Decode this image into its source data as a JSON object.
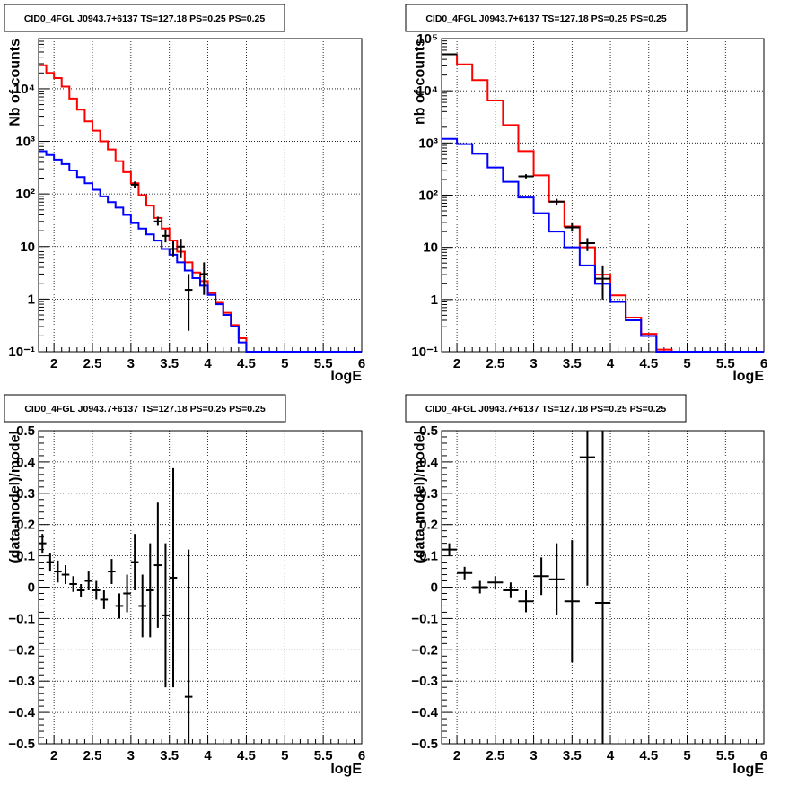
{
  "chart_data": [
    {
      "type": "step",
      "title": "CID0_4FGL J0943.7+6137 TS=127.18 PS=0.25 PS=0.25",
      "xlabel": "logE",
      "ylabel": "Nb of counts",
      "xlim": [
        1.8,
        6.0
      ],
      "ylim": [
        0.1,
        90000
      ],
      "yscale": "log",
      "grid": true,
      "xticks": [
        2,
        2.5,
        3,
        3.5,
        4,
        4.5,
        5,
        5.5,
        6
      ],
      "xtick_labels": [
        "2",
        "2.5",
        "3",
        "3.5",
        "4",
        "4.5",
        "5",
        "5.5",
        "6"
      ],
      "yticks": [
        0.1,
        1,
        10,
        100,
        1000,
        10000
      ],
      "ytick_labels": [
        "10⁻¹",
        "1",
        "10",
        "10²",
        "10³",
        "10⁴"
      ],
      "bin_edges": [
        1.8,
        1.9,
        2.0,
        2.1,
        2.2,
        2.3,
        2.4,
        2.5,
        2.6,
        2.7,
        2.8,
        2.9,
        3.0,
        3.1,
        3.2,
        3.3,
        3.4,
        3.5,
        3.6,
        3.7,
        3.8,
        3.9,
        4.0,
        4.1,
        4.2,
        4.3,
        4.4,
        4.5,
        4.6,
        4.7,
        4.8,
        4.9,
        5.0,
        5.1,
        5.2,
        5.3,
        5.4,
        5.5,
        5.6,
        5.7,
        5.8,
        5.9,
        6.0
      ],
      "series": [
        {
          "color": "#ff0000",
          "values": [
            28000,
            20000,
            16000,
            11000,
            6500,
            4000,
            2400,
            1600,
            1000,
            700,
            420,
            260,
            160,
            95,
            60,
            35,
            22,
            13,
            8,
            5,
            3.2,
            2.2,
            1.3,
            0.85,
            0.55,
            0.32,
            0.18,
            0.1,
            0.1,
            0.1,
            0.1,
            0.1,
            0.1,
            0.1,
            0.1,
            0.1,
            0.1,
            0.1,
            0.1,
            0.1,
            0.1,
            0.1
          ]
        },
        {
          "color": "#0000ff",
          "values": [
            650,
            550,
            450,
            370,
            280,
            210,
            160,
            120,
            90,
            70,
            55,
            40,
            28,
            22,
            17,
            13,
            9,
            7,
            5,
            3.5,
            2.5,
            1.8,
            1.2,
            0.8,
            0.5,
            0.3,
            0.15,
            0.1,
            0.1,
            0.1,
            0.1,
            0.1,
            0.1,
            0.1,
            0.1,
            0.1,
            0.1,
            0.1,
            0.1,
            0.1,
            0.1,
            0.1
          ]
        }
      ],
      "data_points": [
        {
          "x": 3.05,
          "y": 150,
          "ylo": 130,
          "yhi": 172
        },
        {
          "x": 3.35,
          "y": 30,
          "ylo": 25,
          "yhi": 37
        },
        {
          "x": 3.45,
          "y": 16,
          "ylo": 12,
          "yhi": 21
        },
        {
          "x": 3.55,
          "y": 9,
          "ylo": 6.5,
          "yhi": 12.5
        },
        {
          "x": 3.65,
          "y": 10,
          "ylo": 6,
          "yhi": 14
        },
        {
          "x": 3.75,
          "y": 1.5,
          "ylo": 0.25,
          "yhi": 3
        },
        {
          "x": 3.95,
          "y": 3,
          "ylo": 1.2,
          "yhi": 5
        }
      ]
    },
    {
      "type": "step",
      "title": "CID0_4FGL J0943.7+6137 TS=127.18 PS=0.25 PS=0.25",
      "xlabel": "logE",
      "ylabel": "nb of counts",
      "xlim": [
        1.8,
        6.0
      ],
      "ylim": [
        0.1,
        100000
      ],
      "yscale": "log",
      "grid": true,
      "xticks": [
        2,
        2.5,
        3,
        3.5,
        4,
        4.5,
        5,
        5.5,
        6
      ],
      "xtick_labels": [
        "2",
        "2.5",
        "3",
        "3.5",
        "4",
        "4.5",
        "5",
        "5.5",
        "6"
      ],
      "yticks": [
        0.1,
        1,
        10,
        100,
        1000,
        10000,
        100000
      ],
      "ytick_labels": [
        "10⁻¹",
        "1",
        "10",
        "10²",
        "10³",
        "10⁴",
        "10⁵"
      ],
      "bin_edges": [
        1.8,
        2.0,
        2.2,
        2.4,
        2.6,
        2.8,
        3.0,
        3.2,
        3.4,
        3.6,
        3.8,
        4.0,
        4.2,
        4.4,
        4.6,
        4.8,
        5.0,
        5.2,
        5.4,
        5.6,
        5.8,
        6.0
      ],
      "series": [
        {
          "color": "#ff0000",
          "values": [
            50000,
            32000,
            16000,
            6500,
            2200,
            700,
            240,
            75,
            25,
            10,
            3,
            1.2,
            0.45,
            0.22,
            0.11,
            0.1,
            0.1,
            0.1,
            0.1,
            0.1,
            0.1
          ]
        },
        {
          "color": "#0000ff",
          "values": [
            1200,
            950,
            620,
            340,
            180,
            90,
            45,
            20,
            10,
            4.5,
            2,
            0.9,
            0.4,
            0.2,
            0.1,
            0.1,
            0.1,
            0.1,
            0.1,
            0.1,
            0.1
          ]
        }
      ],
      "data_points": [
        {
          "x": 1.9,
          "y": 50000,
          "ylo": 48500,
          "yhi": 51500
        },
        {
          "x": 2.9,
          "y": 230,
          "ylo": 210,
          "yhi": 252
        },
        {
          "x": 3.3,
          "y": 75,
          "ylo": 66,
          "yhi": 85
        },
        {
          "x": 3.5,
          "y": 24,
          "ylo": 20,
          "yhi": 29
        },
        {
          "x": 3.7,
          "y": 12,
          "ylo": 8.5,
          "yhi": 15
        },
        {
          "x": 3.9,
          "y": 2.5,
          "ylo": 1,
          "yhi": 4.5
        }
      ]
    },
    {
      "type": "errorbar",
      "title": "CID0_4FGL J0943.7+6137 TS=127.18 PS=0.25 PS=0.25",
      "xlabel": "logE",
      "ylabel": "(data-model)/model",
      "xlim": [
        1.8,
        6.0
      ],
      "ylim": [
        -0.5,
        0.5
      ],
      "grid": true,
      "xticks": [
        2,
        2.5,
        3,
        3.5,
        4,
        4.5,
        5,
        5.5,
        6
      ],
      "xtick_labels": [
        "2",
        "2.5",
        "3",
        "3.5",
        "4",
        "4.5",
        "5",
        "5.5",
        "6"
      ],
      "yticks": [
        -0.5,
        -0.4,
        -0.3,
        -0.2,
        -0.1,
        0,
        0.1,
        0.2,
        0.3,
        0.4,
        0.5
      ],
      "ytick_labels": [
        "−0.5",
        "−0.4",
        "−0.3",
        "−0.2",
        "−0.1",
        "0",
        "0.1",
        "0.2",
        "0.3",
        "0.4",
        "0.5"
      ],
      "points": [
        {
          "x": 1.85,
          "y": 0.14,
          "yerr": 0.03,
          "xerr": 0.05
        },
        {
          "x": 1.95,
          "y": 0.08,
          "yerr": 0.03,
          "xerr": 0.05
        },
        {
          "x": 2.05,
          "y": 0.05,
          "yerr": 0.035,
          "xerr": 0.05
        },
        {
          "x": 2.15,
          "y": 0.04,
          "yerr": 0.03,
          "xerr": 0.05
        },
        {
          "x": 2.25,
          "y": 0.01,
          "yerr": 0.025,
          "xerr": 0.05
        },
        {
          "x": 2.35,
          "y": -0.01,
          "yerr": 0.02,
          "xerr": 0.05
        },
        {
          "x": 2.45,
          "y": 0.02,
          "yerr": 0.03,
          "xerr": 0.05
        },
        {
          "x": 2.55,
          "y": -0.01,
          "yerr": 0.03,
          "xerr": 0.05
        },
        {
          "x": 2.65,
          "y": -0.04,
          "yerr": 0.03,
          "xerr": 0.05
        },
        {
          "x": 2.75,
          "y": 0.05,
          "yerr": 0.04,
          "xerr": 0.05
        },
        {
          "x": 2.85,
          "y": -0.06,
          "yerr": 0.04,
          "xerr": 0.05
        },
        {
          "x": 2.95,
          "y": -0.02,
          "yerr": 0.06,
          "xerr": 0.05
        },
        {
          "x": 3.05,
          "y": 0.08,
          "yerr": 0.09,
          "xerr": 0.05
        },
        {
          "x": 3.15,
          "y": -0.06,
          "yerr": 0.1,
          "xerr": 0.05
        },
        {
          "x": 3.25,
          "y": -0.01,
          "yerr": 0.15,
          "xerr": 0.05
        },
        {
          "x": 3.35,
          "y": 0.07,
          "yerr": 0.2,
          "xerr": 0.05
        },
        {
          "x": 3.45,
          "y": -0.09,
          "yerr": 0.23,
          "xerr": 0.05
        },
        {
          "x": 3.55,
          "y": 0.03,
          "yerr": 0.35,
          "xerr": 0.05
        },
        {
          "x": 3.75,
          "y": -0.35,
          "yerr": 0.47,
          "xerr": 0.05
        }
      ]
    },
    {
      "type": "errorbar",
      "title": "CID0_4FGL J0943.7+6137 TS=127.18 PS=0.25 PS=0.25",
      "xlabel": "logE",
      "ylabel": "(data-model)/model",
      "xlim": [
        1.8,
        6.0
      ],
      "ylim": [
        -0.5,
        0.5
      ],
      "grid": true,
      "xticks": [
        2,
        2.5,
        3,
        3.5,
        4,
        4.5,
        5,
        5.5,
        6
      ],
      "xtick_labels": [
        "2",
        "2.5",
        "3",
        "3.5",
        "4",
        "4.5",
        "5",
        "5.5",
        "6"
      ],
      "yticks": [
        -0.5,
        -0.4,
        -0.3,
        -0.2,
        -0.1,
        0,
        0.1,
        0.2,
        0.3,
        0.4,
        0.5
      ],
      "ytick_labels": [
        "−0.5",
        "−0.4",
        "−0.3",
        "−0.2",
        "−0.1",
        "0",
        "0.1",
        "0.2",
        "0.3",
        "0.4",
        "0.5"
      ],
      "points": [
        {
          "x": 1.9,
          "y": 0.12,
          "yerr": 0.02,
          "xerr": 0.1
        },
        {
          "x": 2.1,
          "y": 0.045,
          "yerr": 0.02,
          "xerr": 0.1
        },
        {
          "x": 2.3,
          "y": 0.0,
          "yerr": 0.02,
          "xerr": 0.1
        },
        {
          "x": 2.5,
          "y": 0.015,
          "yerr": 0.02,
          "xerr": 0.1
        },
        {
          "x": 2.7,
          "y": -0.01,
          "yerr": 0.025,
          "xerr": 0.1
        },
        {
          "x": 2.9,
          "y": -0.045,
          "yerr": 0.035,
          "xerr": 0.1
        },
        {
          "x": 3.1,
          "y": 0.035,
          "yerr": 0.06,
          "xerr": 0.1
        },
        {
          "x": 3.3,
          "y": 0.025,
          "yerr": 0.115,
          "xerr": 0.1
        },
        {
          "x": 3.5,
          "y": -0.045,
          "yerr": 0.195,
          "xerr": 0.1
        },
        {
          "x": 3.7,
          "y": 0.415,
          "yerr": 0.41,
          "xerr": 0.1
        },
        {
          "x": 3.9,
          "y": -0.05,
          "yerr": 0.55,
          "xerr": 0.1
        }
      ]
    }
  ]
}
